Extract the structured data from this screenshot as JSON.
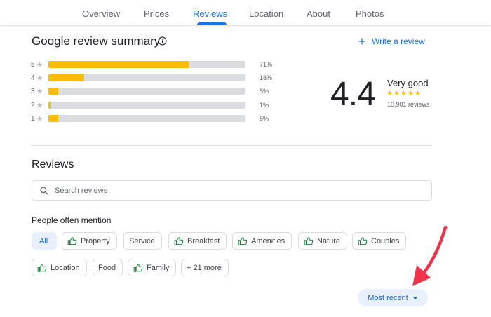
{
  "tabs": [
    {
      "label": "Overview"
    },
    {
      "label": "Prices"
    },
    {
      "label": "Reviews",
      "active": true
    },
    {
      "label": "Location"
    },
    {
      "label": "About"
    },
    {
      "label": "Photos"
    }
  ],
  "summary": {
    "title": "Google review summary",
    "write_review": "Write a review",
    "bars": [
      {
        "star": "5",
        "fraction": 0.71,
        "pct": "71%"
      },
      {
        "star": "4",
        "fraction": 0.18,
        "pct": "18%"
      },
      {
        "star": "3",
        "fraction": 0.05,
        "pct": "5%"
      },
      {
        "star": "2",
        "fraction": 0.01,
        "pct": "1%"
      },
      {
        "star": "1",
        "fraction": 0.05,
        "pct": "5%"
      }
    ],
    "score": "4.4",
    "score_label": "Very good",
    "stars": "★★★★★",
    "count": "10,901 reviews"
  },
  "reviews": {
    "heading": "Reviews",
    "search_placeholder": "Search reviews",
    "mention_heading": "People often mention",
    "chips_row1": [
      {
        "label": "All",
        "active": true,
        "icon": null
      },
      {
        "label": "Property",
        "icon": "thumbs-up-icon"
      },
      {
        "label": "Service",
        "icon": null
      },
      {
        "label": "Breakfast",
        "icon": "thumbs-up-icon"
      },
      {
        "label": "Amenities",
        "icon": "thumbs-up-icon"
      },
      {
        "label": "Nature",
        "icon": "thumbs-up-icon"
      },
      {
        "label": "Couples",
        "icon": "thumbs-up-icon"
      }
    ],
    "chips_row2": [
      {
        "label": "Location",
        "icon": "thumbs-up-icon"
      },
      {
        "label": "Food",
        "icon": null
      },
      {
        "label": "Family",
        "icon": "thumbs-up-icon"
      },
      {
        "label": "+ 21 more",
        "icon": null
      }
    ],
    "sort_label": "Most recent"
  },
  "colors": {
    "accent": "#1a73e8",
    "star": "#fbbc04",
    "positive": "#188038",
    "annotation_arrow": "#f0334b"
  }
}
